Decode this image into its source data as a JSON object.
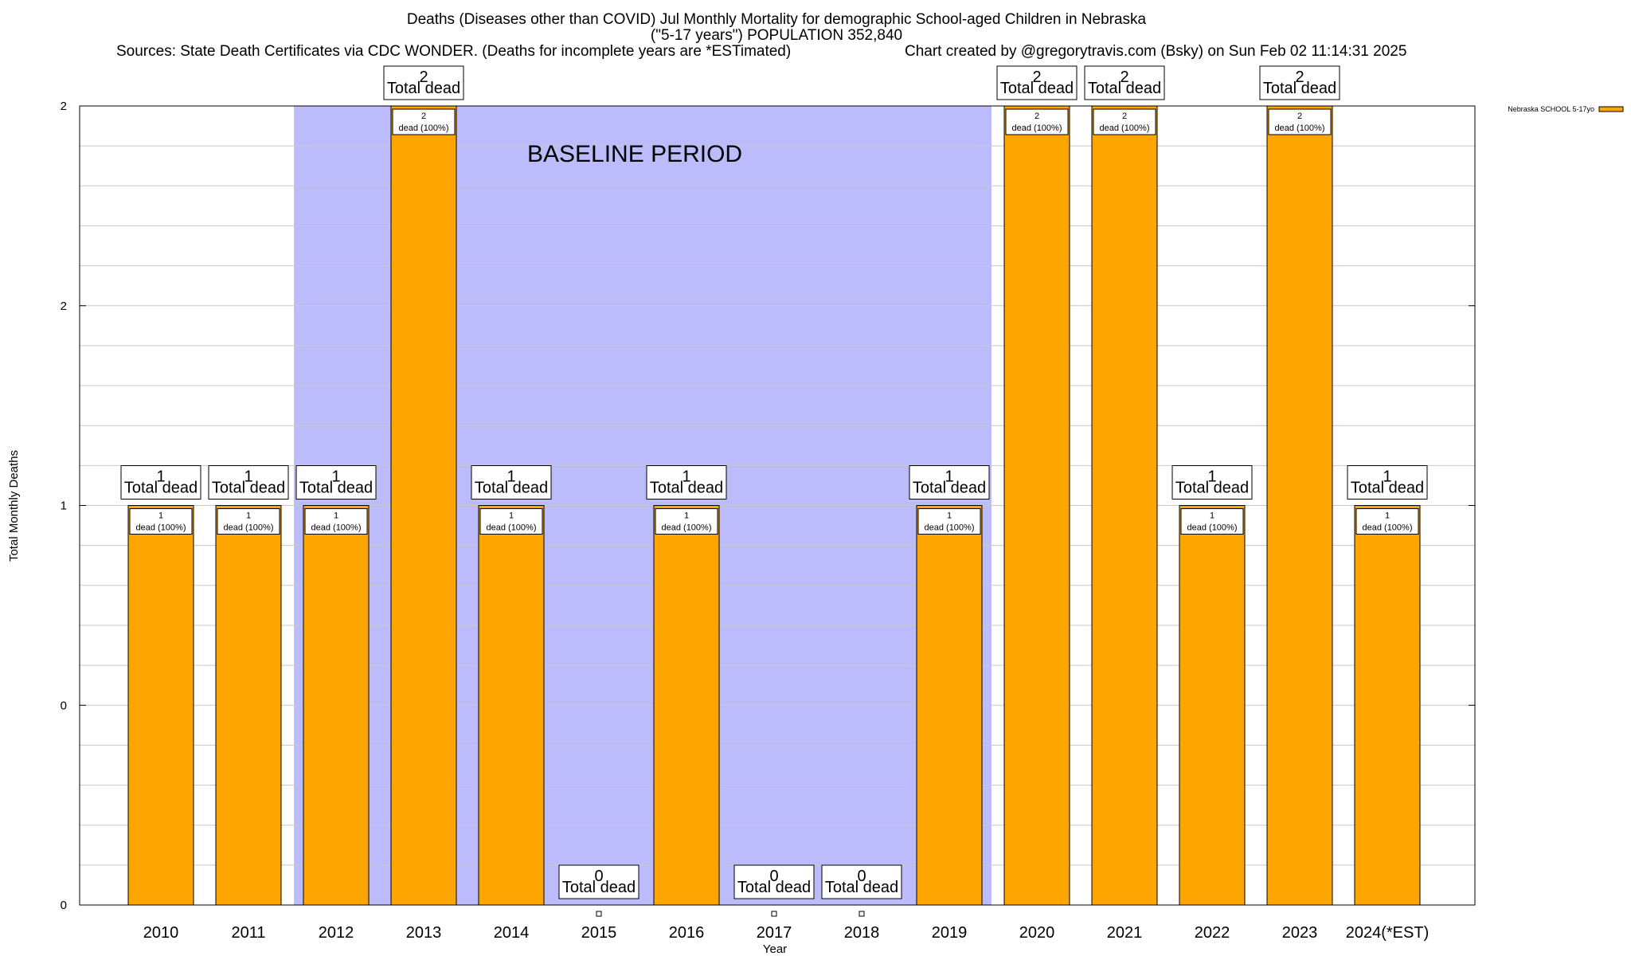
{
  "title_lines": [
    "Deaths (Diseases other than COVID) Jul Monthly Mortality for demographic School-aged Children in Nebraska",
    "(\"5-17 years\") POPULATION 352,840"
  ],
  "source_line": "Sources: State Death Certificates via CDC WONDER. (Deaths for incomplete years are *ESTimated)",
  "credit_line": "Chart created by @gregorytravis.com (Bsky) on Sun Feb 02 11:14:31 2025",
  "chart_data": {
    "type": "bar",
    "categories": [
      "2010",
      "2011",
      "2012",
      "2013",
      "2014",
      "2015",
      "2016",
      "2017",
      "2018",
      "2019",
      "2020",
      "2021",
      "2022",
      "2023",
      "2024(*EST)"
    ],
    "series": [
      {
        "name": "Nebraska SCHOOL 5-17yo",
        "color": "#ffa500",
        "values": [
          1,
          1,
          1,
          2,
          1,
          0,
          1,
          0,
          0,
          1,
          2,
          2,
          1,
          2,
          1
        ]
      }
    ],
    "xlabel": "Year",
    "ylabel": "Total Monthly Deaths",
    "ylim": [
      0,
      2
    ],
    "yticks": [
      {
        "value": 0,
        "label": "0"
      },
      {
        "value": 0.5,
        "label": "0"
      },
      {
        "value": 1,
        "label": "1"
      },
      {
        "value": 1.5,
        "label": "2"
      },
      {
        "value": 2,
        "label": "2"
      }
    ],
    "inner_label_template": "dead (100%)",
    "total_label_suffix": "Total dead",
    "baseline": {
      "label": "BASELINE PERIOD",
      "from": "2012",
      "to": "2019",
      "color": "#bcbcfc"
    },
    "grid": true,
    "legend_position": "top-right"
  }
}
